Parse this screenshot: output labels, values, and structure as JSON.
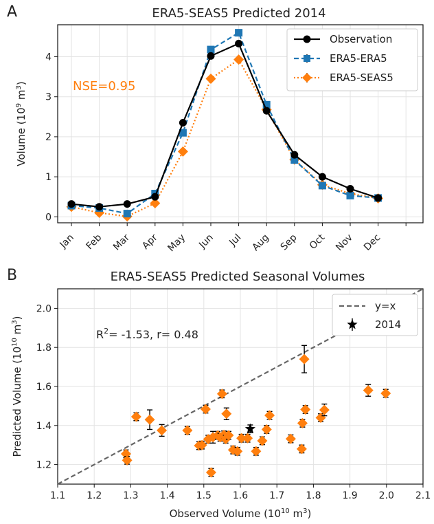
{
  "chart_data": [
    {
      "panel": "A",
      "type": "line",
      "title": "ERA5-SEAS5 Predicted 2014",
      "xlabel": "",
      "ylabel": "Volume (10",
      "ylabel_sup": "9",
      "ylabel_end": " m",
      "ylabel_sup2": "3",
      "ylabel_close": ")",
      "categories": [
        "Jan",
        "Feb",
        "Mar",
        "Apr",
        "May",
        "Jun",
        "Jul",
        "Aug",
        "Sep",
        "Oct",
        "Nov",
        "Dec"
      ],
      "ylim": [
        -0.15,
        4.8
      ],
      "yticks": [
        "0",
        "1",
        "2",
        "3",
        "4"
      ],
      "annotation": "NSE=0.95",
      "series": [
        {
          "name": "Observation",
          "color": "#000000",
          "marker": "circle",
          "linestyle": "solid",
          "values": [
            0.32,
            0.25,
            0.32,
            0.5,
            2.35,
            4.02,
            4.33,
            2.65,
            1.55,
            1.0,
            0.7,
            0.47
          ]
        },
        {
          "name": "ERA5-ERA5",
          "color": "#1f77b4",
          "marker": "square",
          "linestyle": "dashed",
          "values": [
            0.28,
            0.22,
            0.08,
            0.58,
            2.1,
            4.18,
            4.6,
            2.8,
            1.42,
            0.78,
            0.53,
            0.47
          ]
        },
        {
          "name": "ERA5-SEAS5",
          "color": "#ff7f0e",
          "marker": "diamond",
          "linestyle": "dotted",
          "values": [
            0.25,
            0.1,
            0.01,
            0.34,
            1.63,
            3.45,
            3.93,
            2.68,
            1.43,
            0.8,
            0.58,
            0.46
          ]
        }
      ]
    },
    {
      "panel": "B",
      "type": "scatter",
      "title": "ERA5-SEAS5 Predicted Seasonal Volumes",
      "xlabel": "Observed Volume (10",
      "xlabel_sup": "10",
      "xlabel_end": " m",
      "xlabel_sup2": "3",
      "xlabel_close": ")",
      "ylabel": "Predicted Volume (10",
      "ylabel_sup": "10",
      "ylabel_end": " m",
      "ylabel_sup2": "3",
      "ylabel_close": ")",
      "xlim": [
        1.1,
        2.1
      ],
      "ylim": [
        1.1,
        2.1
      ],
      "xticks": [
        "1.1",
        "1.2",
        "1.3",
        "1.4",
        "1.5",
        "1.6",
        "1.7",
        "1.8",
        "1.9",
        "2.0",
        "2.1"
      ],
      "yticks": [
        "1.2",
        "1.4",
        "1.6",
        "1.8",
        "2.0"
      ],
      "annotation_pre": "R",
      "annotation_sup": "2",
      "annotation_post": "= -1.53, r= 0.48",
      "legend": {
        "line": "y=x",
        "star": "2014"
      },
      "points": [
        {
          "x": 1.287,
          "y": 1.255,
          "err": 0.02
        },
        {
          "x": 1.29,
          "y": 1.222,
          "err": 0.02
        },
        {
          "x": 1.315,
          "y": 1.445,
          "err": 0.02
        },
        {
          "x": 1.352,
          "y": 1.43,
          "err": 0.05
        },
        {
          "x": 1.385,
          "y": 1.375,
          "err": 0.03
        },
        {
          "x": 1.455,
          "y": 1.375,
          "err": 0.02
        },
        {
          "x": 1.487,
          "y": 1.297,
          "err": 0.02
        },
        {
          "x": 1.495,
          "y": 1.3,
          "err": 0.02
        },
        {
          "x": 1.505,
          "y": 1.484,
          "err": 0.02
        },
        {
          "x": 1.512,
          "y": 1.33,
          "err": 0.02
        },
        {
          "x": 1.52,
          "y": 1.16,
          "err": 0.02
        },
        {
          "x": 1.525,
          "y": 1.34,
          "err": 0.03
        },
        {
          "x": 1.538,
          "y": 1.35,
          "err": 0.02
        },
        {
          "x": 1.545,
          "y": 1.34,
          "err": 0.02
        },
        {
          "x": 1.55,
          "y": 1.562,
          "err": 0.02
        },
        {
          "x": 1.555,
          "y": 1.352,
          "err": 0.02
        },
        {
          "x": 1.56,
          "y": 1.33,
          "err": 0.02
        },
        {
          "x": 1.562,
          "y": 1.46,
          "err": 0.03
        },
        {
          "x": 1.568,
          "y": 1.35,
          "err": 0.02
        },
        {
          "x": 1.58,
          "y": 1.275,
          "err": 0.02
        },
        {
          "x": 1.592,
          "y": 1.268,
          "err": 0.02
        },
        {
          "x": 1.603,
          "y": 1.335,
          "err": 0.02
        },
        {
          "x": 1.62,
          "y": 1.335,
          "err": 0.02
        },
        {
          "x": 1.643,
          "y": 1.268,
          "err": 0.02
        },
        {
          "x": 1.66,
          "y": 1.322,
          "err": 0.02
        },
        {
          "x": 1.672,
          "y": 1.38,
          "err": 0.02
        },
        {
          "x": 1.68,
          "y": 1.452,
          "err": 0.02
        },
        {
          "x": 1.738,
          "y": 1.332,
          "err": 0.02
        },
        {
          "x": 1.768,
          "y": 1.28,
          "err": 0.02
        },
        {
          "x": 1.77,
          "y": 1.412,
          "err": 0.02
        },
        {
          "x": 1.775,
          "y": 1.74,
          "err": 0.07
        },
        {
          "x": 1.778,
          "y": 1.482,
          "err": 0.02
        },
        {
          "x": 1.82,
          "y": 1.44,
          "err": 0.02
        },
        {
          "x": 1.83,
          "y": 1.48,
          "err": 0.03
        },
        {
          "x": 1.95,
          "y": 1.58,
          "err": 0.03
        },
        {
          "x": 1.998,
          "y": 1.565,
          "err": 0.02
        }
      ],
      "highlight": {
        "label": "2014",
        "x": 1.627,
        "y": 1.383,
        "err": 0.02
      }
    }
  ]
}
